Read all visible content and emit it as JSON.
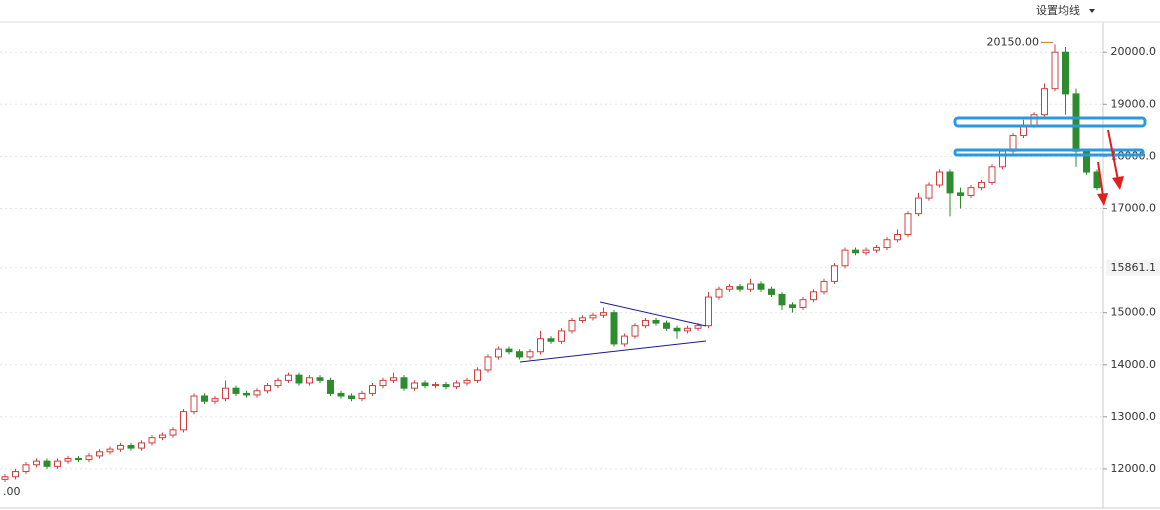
{
  "chart_data": {
    "type": "candlestick",
    "button_label": "设置均线",
    "ylim": [
      11250,
      20580
    ],
    "yticks": [
      {
        "value": 12000,
        "label": "12000.0"
      },
      {
        "value": 13000,
        "label": "13000.0"
      },
      {
        "value": 14000,
        "label": "14000.0"
      },
      {
        "value": 15000,
        "label": "15000.0"
      },
      {
        "value": 17000,
        "label": "17000.0"
      },
      {
        "value": 18000,
        "label": "18000.0"
      },
      {
        "value": 19000,
        "label": "19000.0"
      },
      {
        "value": 20000,
        "label": "20000.0"
      }
    ],
    "grid": true,
    "up_color": "#d04040",
    "down_color": "#2e8b2e",
    "current_price": {
      "value": 15861.1,
      "label": "15861.1"
    },
    "max_label": {
      "value": 20150,
      "label": "20150.00"
    },
    "min_label": ".00",
    "open": [
      11800,
      11850,
      11950,
      12080,
      12150,
      12050,
      12150,
      12200,
      12180,
      12250,
      12330,
      12380,
      12450,
      12400,
      12500,
      12600,
      12650,
      12750,
      13100,
      13400,
      13300,
      13350,
      13550,
      13450,
      13420,
      13500,
      13600,
      13700,
      13800,
      13650,
      13750,
      13700,
      13450,
      13400,
      13350,
      13450,
      13600,
      13700,
      13750,
      13550,
      13650,
      13600,
      13620,
      13580,
      13650,
      13700,
      13900,
      14150,
      14300,
      14250,
      14150,
      14250,
      14500,
      14450,
      14650,
      14850,
      14900,
      14950,
      15000,
      14400,
      14550,
      14750,
      14850,
      14800,
      14700,
      14650,
      14700,
      14750,
      15300,
      15450,
      15500,
      15450,
      15550,
      15450,
      15350,
      15150,
      15100,
      15250,
      15400,
      15600,
      15900,
      16200,
      16150,
      16200,
      16250,
      16400,
      16500,
      16900,
      17200,
      17450,
      17700,
      17300,
      17250,
      17400,
      17500,
      17800,
      18100,
      18400,
      18600,
      18800,
      19300,
      20000,
      19200,
      18100,
      17700
    ],
    "high": [
      11900,
      12000,
      12130,
      12200,
      12200,
      12200,
      12250,
      12250,
      12300,
      12380,
      12430,
      12500,
      12500,
      12550,
      12650,
      12700,
      12800,
      13150,
      13450,
      13450,
      13400,
      13700,
      13600,
      13500,
      13550,
      13650,
      13750,
      13850,
      13850,
      13800,
      13800,
      13750,
      13500,
      13450,
      13500,
      13650,
      13750,
      13850,
      13800,
      13700,
      13700,
      13670,
      13670,
      13700,
      13750,
      13950,
      14200,
      14350,
      14350,
      14300,
      14300,
      14650,
      14550,
      14700,
      14900,
      14950,
      15000,
      15100,
      15050,
      14600,
      14800,
      14900,
      14900,
      14850,
      14750,
      14750,
      14800,
      15400,
      15500,
      15550,
      15550,
      15650,
      15600,
      15500,
      15400,
      15200,
      15300,
      15450,
      15650,
      15950,
      16250,
      16250,
      16250,
      16300,
      16450,
      16600,
      16950,
      17300,
      17500,
      17750,
      17750,
      17400,
      17450,
      17550,
      17850,
      18150,
      18450,
      18700,
      18850,
      19400,
      20150,
      20100,
      19300,
      18150,
      17750
    ],
    "low": [
      11750,
      11800,
      11900,
      12030,
      12000,
      12000,
      12100,
      12130,
      12130,
      12200,
      12280,
      12330,
      12350,
      12350,
      12450,
      12550,
      12600,
      12700,
      13050,
      13250,
      13250,
      13300,
      13400,
      13370,
      13370,
      13450,
      13550,
      13650,
      13600,
      13600,
      13650,
      13400,
      13350,
      13300,
      13300,
      13400,
      13550,
      13650,
      13500,
      13500,
      13550,
      13550,
      13530,
      13530,
      13600,
      13650,
      13850,
      14100,
      14200,
      14100,
      14100,
      14200,
      14400,
      14400,
      14600,
      14800,
      14850,
      14900,
      14350,
      14350,
      14500,
      14700,
      14750,
      14650,
      14500,
      14600,
      14650,
      14700,
      15250,
      15400,
      15400,
      15400,
      15400,
      15300,
      15050,
      15000,
      15050,
      15200,
      15350,
      15550,
      15850,
      16100,
      16100,
      16150,
      16200,
      16350,
      16450,
      16850,
      17150,
      17400,
      16850,
      17000,
      17200,
      17350,
      17450,
      17750,
      18050,
      18350,
      18550,
      18750,
      19250,
      18800,
      17800,
      17650,
      17350
    ],
    "close": [
      11850,
      11950,
      12080,
      12150,
      12050,
      12150,
      12200,
      12180,
      12250,
      12330,
      12380,
      12450,
      12400,
      12500,
      12600,
      12650,
      12750,
      13100,
      13400,
      13300,
      13350,
      13550,
      13450,
      13420,
      13500,
      13600,
      13700,
      13800,
      13650,
      13750,
      13700,
      13450,
      13400,
      13350,
      13450,
      13600,
      13700,
      13750,
      13550,
      13650,
      13600,
      13620,
      13580,
      13650,
      13700,
      13900,
      14150,
      14300,
      14250,
      14150,
      14250,
      14500,
      14450,
      14650,
      14850,
      14900,
      14950,
      15000,
      14400,
      14550,
      14750,
      14850,
      14800,
      14700,
      14650,
      14700,
      14750,
      15300,
      15450,
      15500,
      15450,
      15550,
      15450,
      15350,
      15150,
      15100,
      15250,
      15400,
      15600,
      15900,
      16200,
      16150,
      16200,
      16250,
      16400,
      16500,
      16900,
      17200,
      17450,
      17700,
      17300,
      17250,
      17400,
      17500,
      17800,
      18100,
      18400,
      18600,
      18800,
      19300,
      20000,
      19200,
      18100,
      17700,
      17400
    ]
  }
}
